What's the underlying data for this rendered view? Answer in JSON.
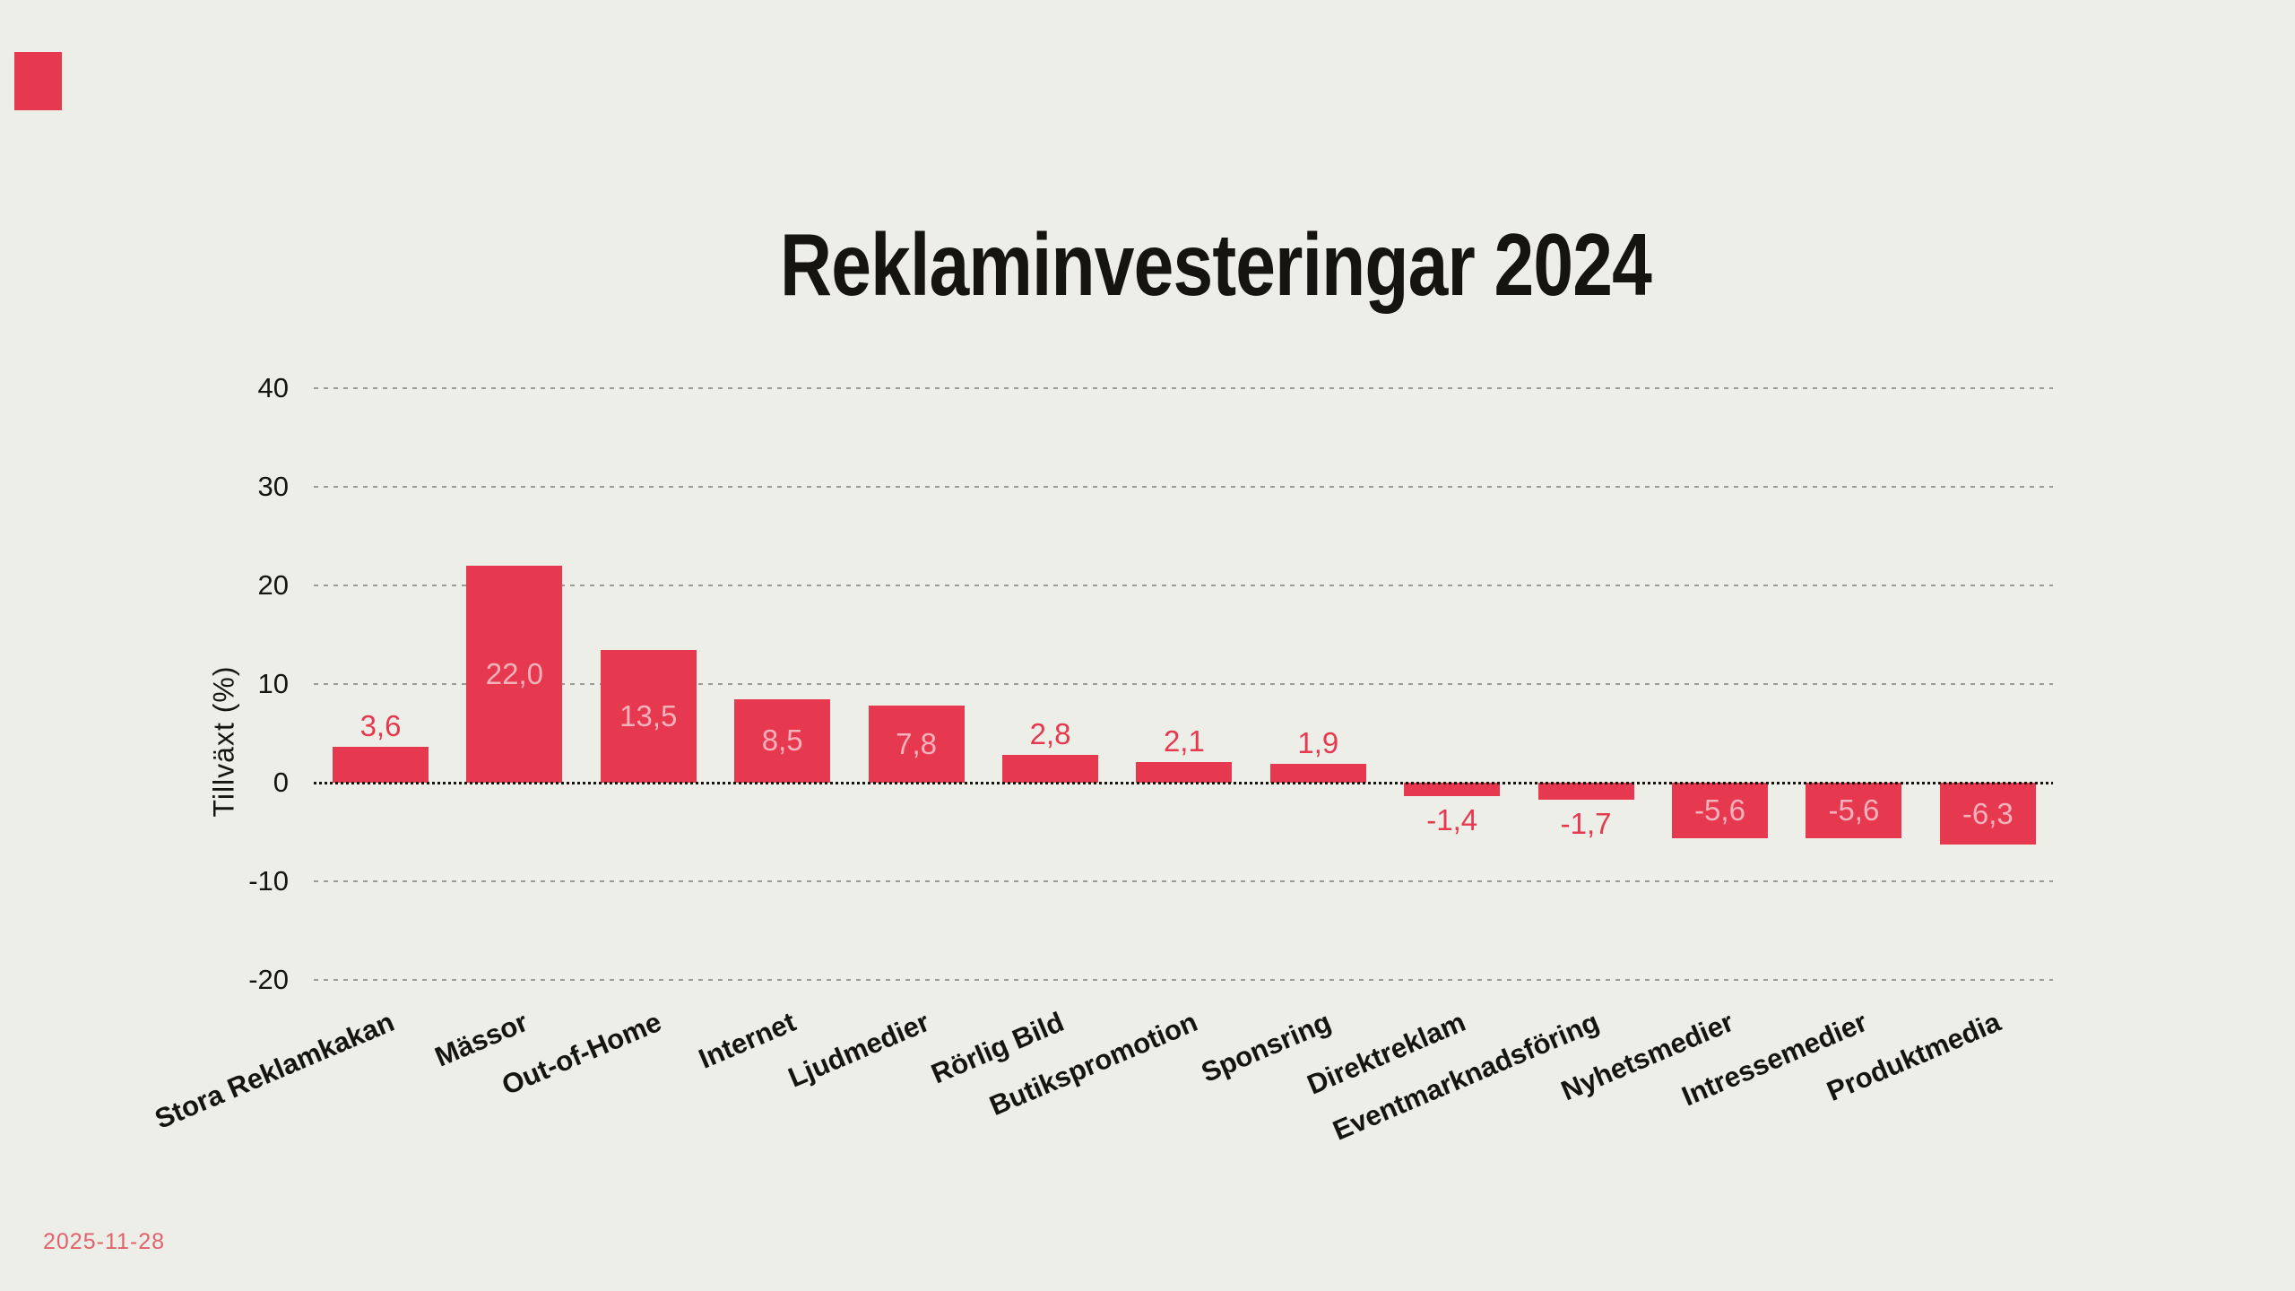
{
  "page": {
    "background_color": "#EDEEE8",
    "text_color": "#15140f",
    "accent_color": "#E6394F"
  },
  "logo": {
    "color": "#E6394F"
  },
  "date_label": "2025-11-28",
  "date_color": "#E2636C",
  "chart_data": {
    "type": "bar",
    "title": "Reklaminvesteringar 2024",
    "xlabel": "",
    "ylabel": "Tillväxt (%)",
    "categories": [
      "Stora Reklamkakan",
      "Mässor",
      "Out-of-Home",
      "Internet",
      "Ljudmedier",
      "Rörlig Bild",
      "Butikspromotion",
      "Sponsring",
      "Direktreklam",
      "Eventmarknadsföring",
      "Nyhetsmedier",
      "Intressemedier",
      "Produktmedia"
    ],
    "values": [
      3.6,
      22.0,
      13.5,
      8.5,
      7.8,
      2.8,
      2.1,
      1.9,
      -1.4,
      -1.7,
      -5.6,
      -5.6,
      -6.3
    ],
    "value_labels": [
      "3,6",
      "22,0",
      "13,5",
      "8,5",
      "7,8",
      "2,8",
      "2,1",
      "1,9",
      "-1,4",
      "-1,7",
      "-5,6",
      "-5,6",
      "-6,3"
    ],
    "yticks": [
      40,
      30,
      20,
      10,
      0,
      -10,
      -20
    ],
    "ylim": [
      -20,
      40
    ],
    "grid": "horizontal-dotted",
    "legend": "none",
    "bar_color": "#E6394F",
    "value_label_inside_color": "#F2B2BB",
    "value_label_outside_color": "#E6394F",
    "gridline_color": "#9b9b97",
    "zero_line_color": "#15140f"
  }
}
